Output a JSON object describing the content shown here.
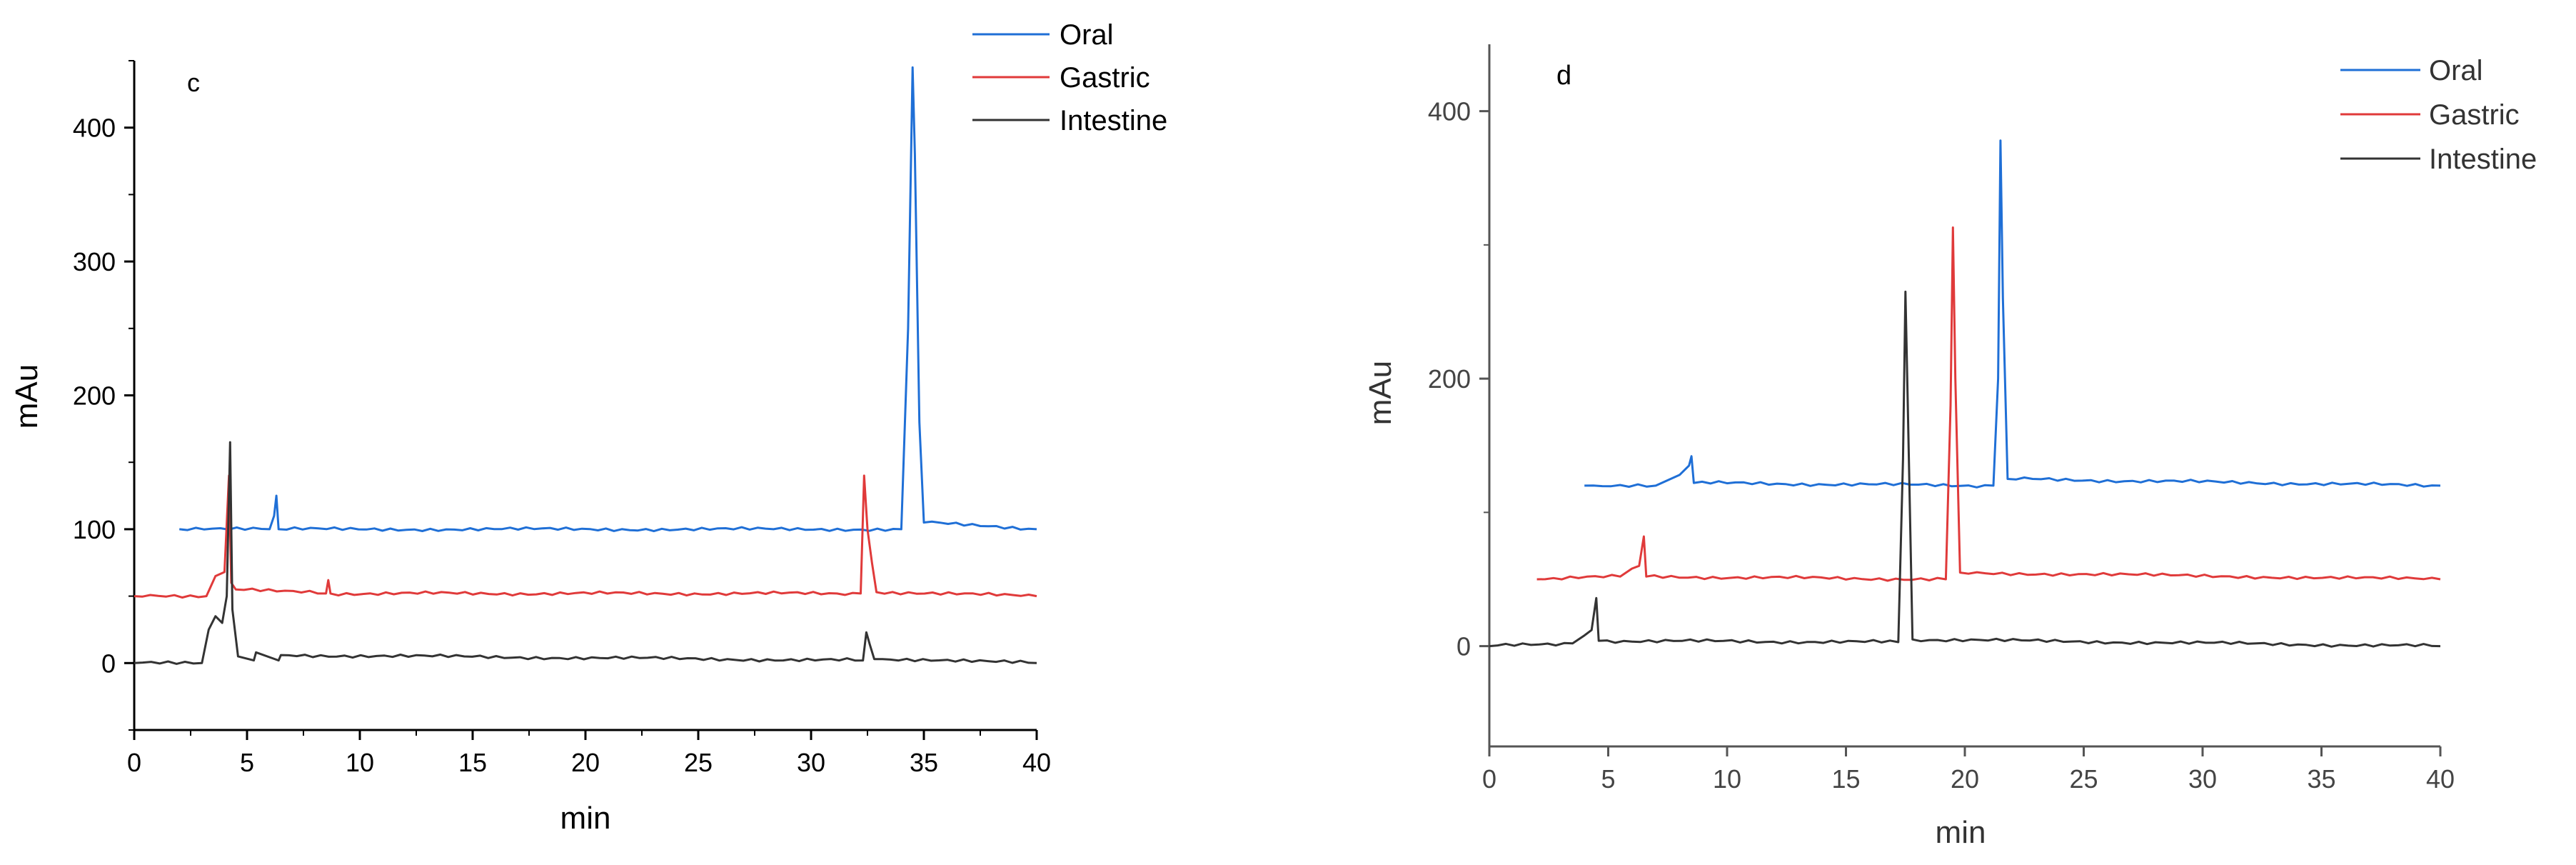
{
  "colors": {
    "oral": "#1f6fd6",
    "gastric": "#e03a3a",
    "intestine": "#333333",
    "axis": "#000000"
  },
  "chart_data": [
    {
      "type": "line",
      "panel_label": "c",
      "xlabel": "min",
      "ylabel": "mAu",
      "xlim": [
        0,
        40
      ],
      "ylim": [
        -50,
        450
      ],
      "xticks": [
        0,
        5,
        10,
        15,
        20,
        25,
        30,
        35,
        40
      ],
      "yticks": [
        0,
        100,
        200,
        300,
        400
      ],
      "legend_position": "top-right",
      "series": [
        {
          "name": "Oral",
          "color": "#1f6fd6",
          "baseline": 100,
          "x": [
            2.0,
            6.0,
            6.2,
            6.3,
            6.4,
            34.0,
            34.3,
            34.5,
            34.6,
            34.8,
            35.0,
            40.0
          ],
          "y": [
            100,
            100,
            110,
            125,
            100,
            100,
            250,
            445,
            380,
            180,
            105,
            100
          ]
        },
        {
          "name": "Gastric",
          "color": "#e03a3a",
          "baseline": 50,
          "x": [
            0.0,
            3.2,
            3.6,
            4.0,
            4.2,
            4.3,
            4.5,
            8.5,
            8.6,
            8.7,
            32.2,
            32.35,
            32.5,
            32.7,
            32.9,
            40.0
          ],
          "y": [
            50,
            50,
            65,
            68,
            140,
            60,
            55,
            52,
            62,
            52,
            52,
            140,
            100,
            75,
            53,
            50
          ]
        },
        {
          "name": "Intestine",
          "color": "#333333",
          "baseline": 0,
          "x": [
            0.0,
            3.0,
            3.3,
            3.6,
            3.9,
            4.1,
            4.25,
            4.35,
            4.6,
            5.3,
            5.4,
            6.4,
            6.5,
            32.3,
            32.45,
            32.6,
            32.8,
            40.0
          ],
          "y": [
            0,
            0,
            25,
            35,
            30,
            50,
            165,
            40,
            5,
            2,
            8,
            2,
            6,
            2,
            23,
            14,
            3,
            0
          ]
        }
      ]
    },
    {
      "type": "line",
      "panel_label": "d",
      "xlabel": "min",
      "ylabel": "mAu",
      "xlim": [
        0,
        40
      ],
      "ylim": [
        -75,
        450
      ],
      "xticks": [
        0,
        5,
        10,
        15,
        20,
        25,
        30,
        35,
        40
      ],
      "yticks": [
        0,
        200,
        400
      ],
      "legend_position": "top-right",
      "series": [
        {
          "name": "Oral",
          "color": "#1f6fd6",
          "baseline": 120,
          "x": [
            4.0,
            7.0,
            8.0,
            8.4,
            8.5,
            8.6,
            21.2,
            21.4,
            21.5,
            21.6,
            21.8,
            40.0
          ],
          "y": [
            120,
            120,
            128,
            135,
            142,
            122,
            120,
            200,
            378,
            260,
            125,
            120
          ]
        },
        {
          "name": "Gastric",
          "color": "#e03a3a",
          "baseline": 50,
          "x": [
            2.0,
            5.5,
            6.0,
            6.3,
            6.5,
            6.6,
            19.2,
            19.4,
            19.5,
            19.6,
            19.8,
            40.0
          ],
          "y": [
            50,
            52,
            58,
            60,
            82,
            52,
            50,
            180,
            313,
            200,
            55,
            50
          ]
        },
        {
          "name": "Intestine",
          "color": "#333333",
          "baseline": 0,
          "x": [
            0.0,
            3.5,
            4.0,
            4.3,
            4.5,
            4.6,
            17.2,
            17.4,
            17.5,
            17.6,
            17.8,
            40.0
          ],
          "y": [
            0,
            2,
            8,
            12,
            36,
            4,
            3,
            140,
            265,
            180,
            5,
            0
          ]
        }
      ]
    }
  ]
}
